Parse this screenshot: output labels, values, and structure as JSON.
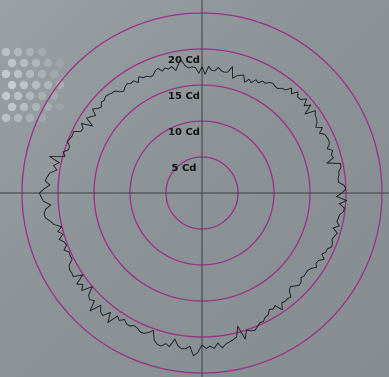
{
  "chart_data": {
    "type": "polar",
    "title": "",
    "units": "Cd",
    "ring_values": [
      5,
      10,
      15,
      20,
      25
    ],
    "ring_labels": [
      "5 Cd",
      "10 Cd",
      "15 Cd",
      "20 Cd"
    ],
    "r_max": 25,
    "grid": true,
    "axes": "crosshair",
    "angle_zero": "up",
    "angle_direction": "clockwise",
    "series": [
      {
        "color": "#1a1a1a",
        "angles_deg": [
          0,
          15,
          30,
          45,
          60,
          75,
          90,
          105,
          120,
          135,
          150,
          165,
          180,
          195,
          210,
          225,
          240,
          255,
          270,
          285,
          300,
          315,
          330,
          345
        ],
        "values_cd": [
          17.4,
          17.0,
          17.4,
          19.3,
          18.7,
          19.0,
          19.8,
          19.2,
          19.0,
          18.3,
          19.1,
          20.8,
          21.6,
          21.5,
          21.0,
          21.3,
          20.8,
          20.4,
          22.1,
          20.0,
          19.0,
          18.6,
          18.1,
          17.7
        ]
      }
    ]
  },
  "colors": {
    "grid_ring": "#9b2f86",
    "axis": "#3b3f42",
    "trace": "#1a1a1a",
    "label": "#111111",
    "background": "#8f969a",
    "dots": "#c7cdd0"
  }
}
